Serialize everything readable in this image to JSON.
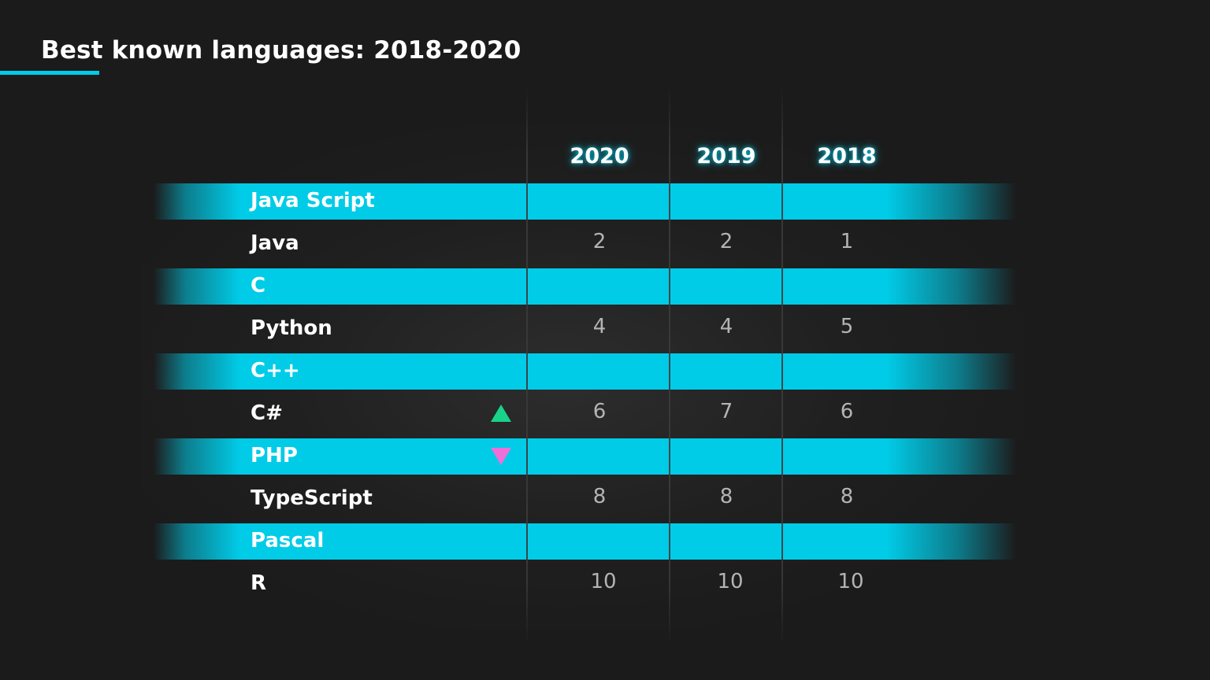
{
  "colors": {
    "background": "#1b1b1b",
    "accent": "#00cce8",
    "up": "#19d38a",
    "down": "#ee6fd8",
    "value_text": "#b4b4b4"
  },
  "title": "Best known languages: 2018-2020",
  "chart_data": {
    "type": "table",
    "title": "Best known languages: 2018-2020",
    "columns": [
      "2020",
      "2019",
      "2018"
    ],
    "rows": [
      {
        "language": "Java Script",
        "values": [
          "",
          "",
          ""
        ],
        "highlighted": true,
        "trend": ""
      },
      {
        "language": "Java",
        "values": [
          "2",
          "2",
          "1"
        ],
        "highlighted": false,
        "trend": ""
      },
      {
        "language": "C",
        "values": [
          "",
          "",
          ""
        ],
        "highlighted": true,
        "trend": ""
      },
      {
        "language": "Python",
        "values": [
          "4",
          "4",
          "5"
        ],
        "highlighted": false,
        "trend": ""
      },
      {
        "language": "C++",
        "values": [
          "",
          "",
          ""
        ],
        "highlighted": true,
        "trend": ""
      },
      {
        "language": "C#",
        "values": [
          "6",
          "7",
          "6"
        ],
        "highlighted": false,
        "trend": "up"
      },
      {
        "language": "PHP",
        "values": [
          "",
          "",
          ""
        ],
        "highlighted": true,
        "trend": "down"
      },
      {
        "language": "TypeScript",
        "values": [
          "8",
          "8",
          "8"
        ],
        "highlighted": false,
        "trend": ""
      },
      {
        "language": "Pascal",
        "values": [
          "",
          "",
          ""
        ],
        "highlighted": true,
        "trend": ""
      },
      {
        "language": "R",
        "values": [
          "10",
          "10",
          "10"
        ],
        "highlighted": false,
        "trend": ""
      }
    ]
  }
}
